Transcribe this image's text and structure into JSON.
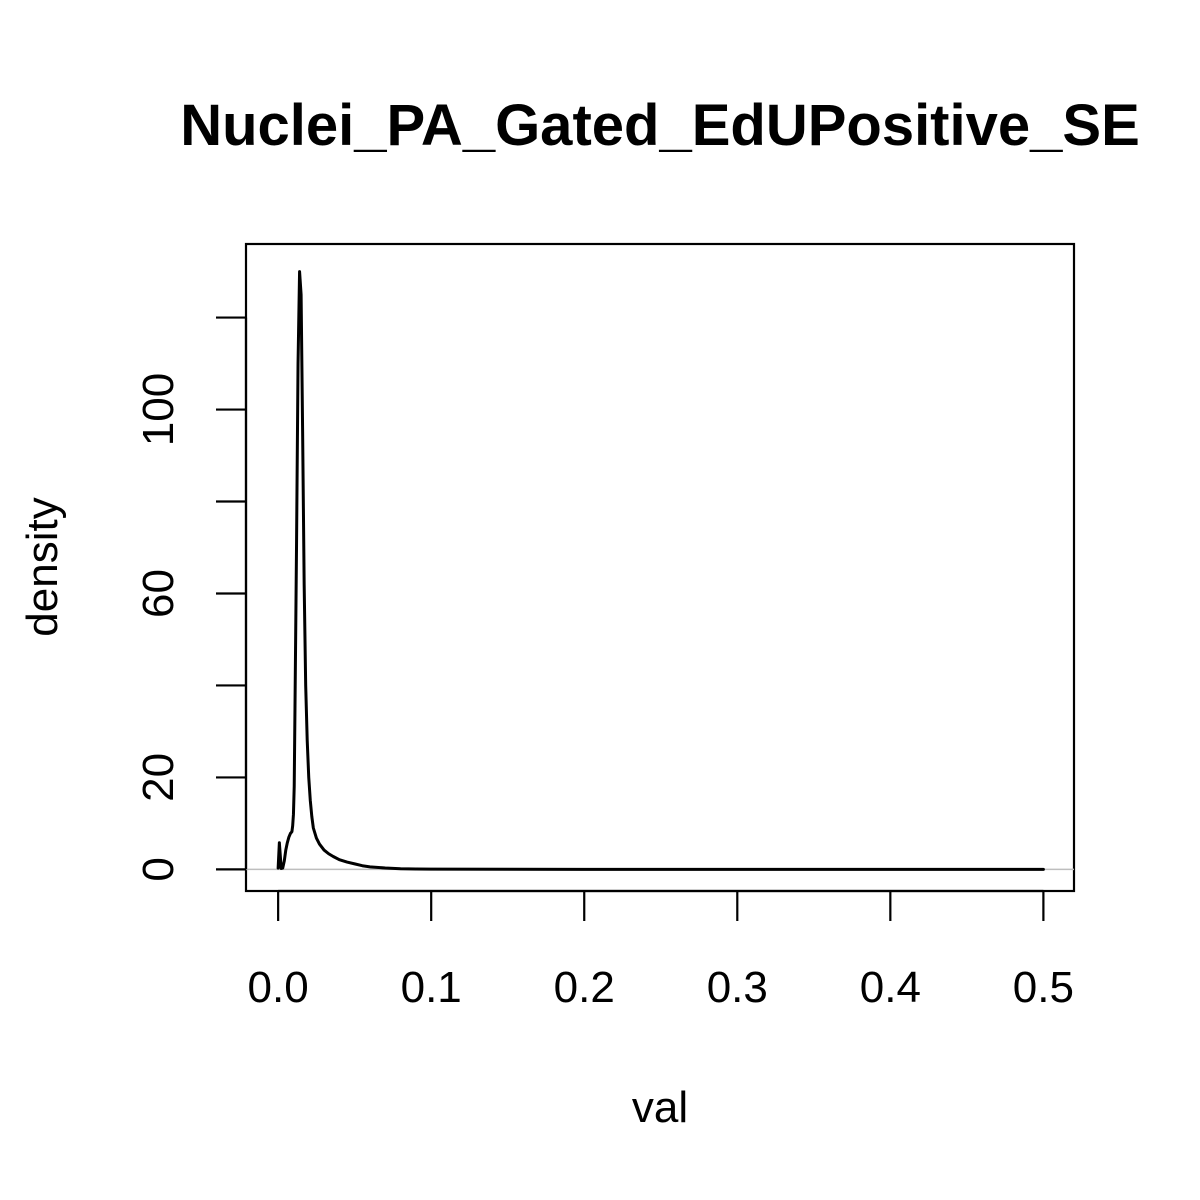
{
  "chart_data": {
    "type": "line",
    "title": "Nuclei_PA_Gated_EdUPositive_SE",
    "xlabel": "val",
    "ylabel": "density",
    "xlim": [
      -0.021,
      0.52
    ],
    "ylim": [
      -4.7,
      136
    ],
    "x_ticks": [
      0.0,
      0.1,
      0.2,
      0.3,
      0.4,
      0.5
    ],
    "x_tick_labels": [
      "0.0",
      "0.1",
      "0.2",
      "0.3",
      "0.4",
      "0.5"
    ],
    "y_ticks": [
      0,
      20,
      40,
      60,
      80,
      100,
      120
    ],
    "y_tick_labels": [
      "0",
      "20",
      "",
      "60",
      "",
      "100",
      ""
    ],
    "baseline": 0,
    "grid": false,
    "legend": "none",
    "colors": {
      "line": "#000000",
      "baseline": "#bebebe",
      "frame": "#000000"
    },
    "series": [
      {
        "x": [
          0.0,
          0.0008,
          0.0015,
          0.002,
          0.003,
          0.004,
          0.005,
          0.006,
          0.007,
          0.008,
          0.009,
          0.0095,
          0.01,
          0.0105,
          0.011,
          0.012,
          0.013,
          0.014,
          0.015,
          0.016,
          0.017,
          0.018,
          0.019,
          0.02,
          0.021,
          0.022,
          0.023,
          0.025,
          0.027,
          0.03,
          0.033,
          0.036,
          0.04,
          0.045,
          0.05,
          0.055,
          0.06,
          0.07,
          0.08,
          0.09,
          0.1,
          0.15,
          0.2,
          0.3,
          0.4,
          0.5
        ],
        "y": [
          0.3,
          5.8,
          2.5,
          0.2,
          0.3,
          1.8,
          4.2,
          5.8,
          7.0,
          7.8,
          8.2,
          9.5,
          12.0,
          18.0,
          35.0,
          70.0,
          110.0,
          130.0,
          125.0,
          95.0,
          62.0,
          40.0,
          28.0,
          20.0,
          15.0,
          11.5,
          9.0,
          6.8,
          5.5,
          4.2,
          3.4,
          2.8,
          2.1,
          1.6,
          1.2,
          0.8,
          0.55,
          0.3,
          0.15,
          0.08,
          0.05,
          0.02,
          0.01,
          0.005,
          0.002,
          0.001
        ]
      }
    ]
  }
}
